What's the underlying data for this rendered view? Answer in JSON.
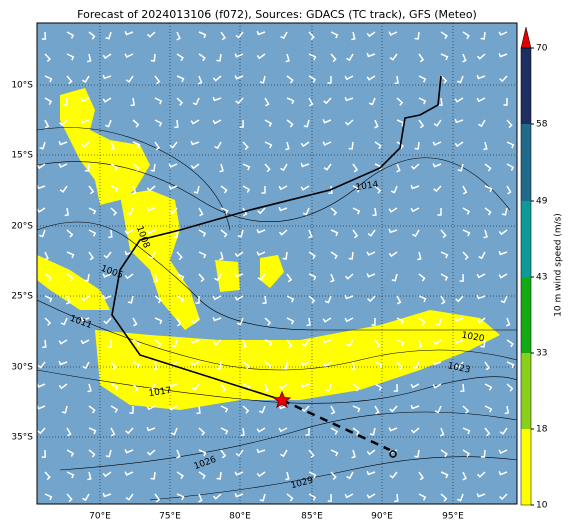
{
  "header": {
    "title": "Forecast of 2024013106 (f072), Sources: GDACS (TC track), GFS (Meteo)"
  },
  "map": {
    "lon_labels": [
      "70°E",
      "75°E",
      "80°E",
      "85°E",
      "90°E",
      "95°E"
    ],
    "lat_labels": [
      "10°S",
      "15°S",
      "20°S",
      "25°S",
      "30°S",
      "35°S"
    ],
    "contour_labels": [
      "1014",
      "1008",
      "1005",
      "1011",
      "1020",
      "1023",
      "1017",
      "1026",
      "1029"
    ]
  },
  "colorbar": {
    "label": "10 m wind speed (m/s)",
    "ticks": [
      10,
      18,
      33,
      43,
      49,
      58,
      70
    ]
  }
}
